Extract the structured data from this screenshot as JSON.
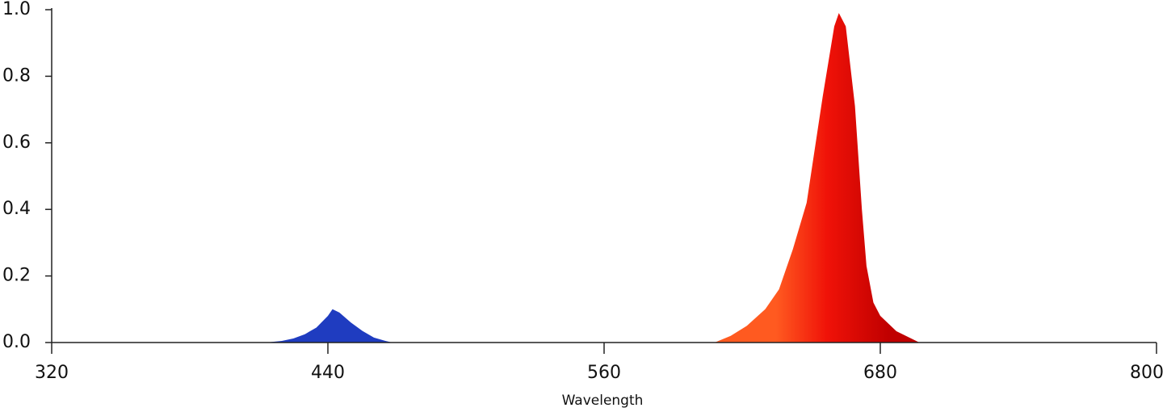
{
  "chart_data": {
    "type": "area",
    "x_label": "Wavelength",
    "series": [
      {
        "color": "#1f3cc0",
        "x": [
          413,
          420,
          425,
          430,
          435,
          440,
          442,
          445,
          450,
          455,
          460,
          465,
          468
        ],
        "values": [
          0,
          0.005,
          0.012,
          0.025,
          0.045,
          0.08,
          0.1,
          0.09,
          0.06,
          0.035,
          0.015,
          0.005,
          0
        ]
      },
      {
        "color": "#f01208",
        "gradient": [
          "#ff5a20",
          "#f01208",
          "#c00000"
        ],
        "x": [
          608,
          615,
          622,
          630,
          636,
          642,
          648,
          655,
          660,
          662,
          665,
          669,
          672,
          674,
          677,
          680,
          687,
          697
        ],
        "values": [
          0,
          0.02,
          0.05,
          0.1,
          0.16,
          0.28,
          0.42,
          0.74,
          0.95,
          0.99,
          0.95,
          0.71,
          0.4,
          0.23,
          0.12,
          0.08,
          0.034,
          0
        ]
      }
    ],
    "xlim": [
      320,
      800
    ],
    "xticks": [
      320,
      440,
      560,
      680,
      800
    ],
    "ylim": [
      0,
      1
    ],
    "yticks": [
      {
        "value": 0,
        "label": "0.0"
      },
      0.2,
      0.4,
      0.6,
      0.8,
      {
        "value": 1,
        "label": "1.0"
      }
    ],
    "grid": false
  }
}
